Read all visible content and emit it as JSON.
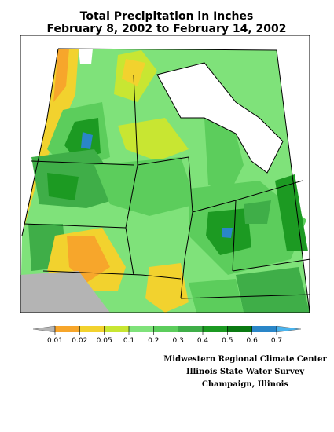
{
  "title": [
    "Total Precipitation in Inches",
    "February 8, 2002 to February 14, 2002"
  ],
  "legend": {
    "breaks": [
      0.01,
      0.02,
      0.05,
      0.1,
      0.2,
      0.3,
      0.4,
      0.5,
      0.6,
      0.7
    ],
    "colors": [
      "#b4b4b4",
      "#f7a62b",
      "#f2d22e",
      "#c8e632",
      "#7fe27a",
      "#5ccd5c",
      "#3fae48",
      "#1c9a22",
      "#0a7a12",
      "#2a86c8",
      "#4ab4ee"
    ]
  },
  "credits": [
    "Midwestern Regional Climate Center",
    "Illinois State Water Survey",
    "Champaign, Illinois"
  ]
}
